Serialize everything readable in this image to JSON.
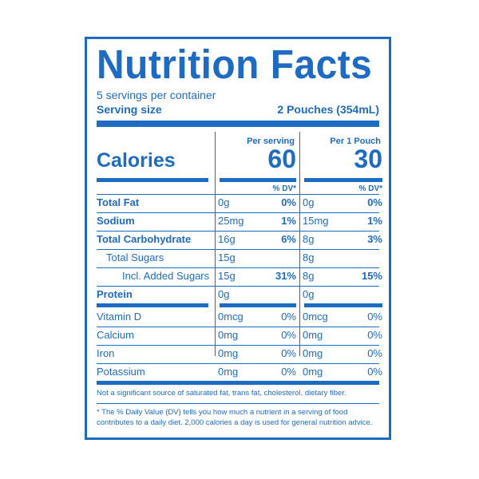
{
  "title": "Nutrition Facts",
  "servings_per_container": "5 servings per container",
  "serving_size_label": "Serving size",
  "serving_size_value": "2 Pouches (354mL)",
  "calories_label": "Calories",
  "columns": [
    {
      "header": "Per serving",
      "calories": "60",
      "dv_header": "% DV*"
    },
    {
      "header": "Per 1 Pouch",
      "calories": "30",
      "dv_header": "% DV*"
    }
  ],
  "nutrients": [
    {
      "label": "Total Fat",
      "bold": true,
      "amounts": [
        "0g",
        "0g"
      ],
      "dv": [
        "0%",
        "0%"
      ]
    },
    {
      "label": "Sodium",
      "bold": true,
      "amounts": [
        "25mg",
        "15mg"
      ],
      "dv": [
        "1%",
        "1%"
      ]
    },
    {
      "label": "Total Carbohydrate",
      "bold": true,
      "amounts": [
        "16g",
        "8g"
      ],
      "dv": [
        "6%",
        "3%"
      ]
    },
    {
      "label": "Total Sugars",
      "bold": false,
      "amounts": [
        "15g",
        "8g"
      ],
      "dv": [
        "",
        ""
      ]
    },
    {
      "label": "Incl. Added Sugars",
      "bold": false,
      "amounts": [
        "15g",
        "8g"
      ],
      "dv": [
        "31%",
        "15%"
      ]
    },
    {
      "label": "Protein",
      "bold": true,
      "amounts": [
        "0g",
        "0g"
      ],
      "dv": [
        "",
        ""
      ]
    }
  ],
  "vitamins": [
    {
      "label": "Vitamin D",
      "amounts": [
        "0mcg",
        "0mcg"
      ],
      "dv": [
        "0%",
        "0%"
      ]
    },
    {
      "label": "Calcium",
      "amounts": [
        "0mg",
        "0mg"
      ],
      "dv": [
        "0%",
        "0%"
      ]
    },
    {
      "label": "Iron",
      "amounts": [
        "0mg",
        "0mg"
      ],
      "dv": [
        "0%",
        "0%"
      ]
    },
    {
      "label": "Potassium",
      "amounts": [
        "0mg",
        "0mg"
      ],
      "dv": [
        "0%",
        "0%"
      ]
    }
  ],
  "footnote_1": "Not a significant source of saturated fat, trans fat, cholesterol, dietary fiber.",
  "footnote_2": "* The % Daily Value (DV) tells you how much a nutrient in a serving of food contributes to a daily diet. 2,000 calories a day is used for general nutrition advice.",
  "colors": {
    "label_blue": "#1e6bc4",
    "background": "#ffffff"
  }
}
